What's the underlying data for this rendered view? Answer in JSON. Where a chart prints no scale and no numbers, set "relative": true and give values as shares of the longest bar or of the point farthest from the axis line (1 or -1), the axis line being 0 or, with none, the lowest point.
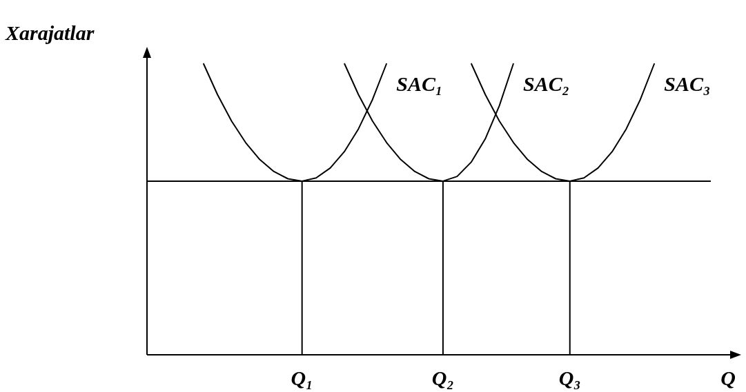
{
  "chart_data": {
    "type": "line",
    "relative": true,
    "xlabel": "Q",
    "ylabel": "Xarajatlar",
    "categories": [
      null,
      null,
      null,
      null,
      null,
      null,
      null,
      null,
      null,
      null,
      null,
      "Q₁",
      null,
      null,
      null,
      null,
      null,
      null,
      null,
      null,
      null,
      "Q₂",
      null,
      null,
      null,
      null,
      null,
      null,
      null,
      null,
      "Q₃",
      null,
      null,
      null,
      null,
      null,
      null,
      null,
      null,
      null,
      null
    ],
    "series": [
      {
        "name": "SAC₁",
        "color": "#000000",
        "values": [
          null,
          null,
          null,
          null,
          1.0,
          0.893,
          0.802,
          0.728,
          0.67,
          0.629,
          0.604,
          0.596,
          0.607,
          0.641,
          0.697,
          0.775,
          0.876,
          1.0,
          null,
          null,
          null,
          null,
          null,
          null,
          null,
          null,
          null,
          null,
          null,
          null,
          null,
          null,
          null,
          null,
          null,
          null,
          null,
          null,
          null,
          null,
          null
        ]
      },
      {
        "name": "SAC₂",
        "color": "#000000",
        "values": [
          null,
          null,
          null,
          null,
          null,
          null,
          null,
          null,
          null,
          null,
          null,
          null,
          null,
          null,
          1.0,
          0.893,
          0.802,
          0.728,
          0.67,
          0.629,
          0.604,
          0.596,
          0.612,
          0.661,
          0.741,
          0.855,
          1.0,
          null,
          null,
          null,
          null,
          null,
          null,
          null,
          null,
          null,
          null,
          null,
          null,
          null,
          null
        ]
      },
      {
        "name": "SAC₃",
        "color": "#000000",
        "values": [
          null,
          null,
          null,
          null,
          null,
          null,
          null,
          null,
          null,
          null,
          null,
          null,
          null,
          null,
          null,
          null,
          null,
          null,
          null,
          null,
          null,
          null,
          null,
          1.0,
          0.893,
          0.802,
          0.728,
          0.67,
          0.629,
          0.604,
          0.596,
          0.607,
          0.641,
          0.697,
          0.775,
          0.876,
          1.0,
          null,
          null,
          null,
          null
        ]
      },
      {
        "color": "#000000",
        "values": [
          0.596,
          0.596,
          0.596,
          0.596,
          0.596,
          0.596,
          0.596,
          0.596,
          0.596,
          0.596,
          0.596,
          0.596,
          0.596,
          0.596,
          0.596,
          0.596,
          0.596,
          0.596,
          0.596,
          0.596,
          0.596,
          0.596,
          0.596,
          0.596,
          0.596,
          0.596,
          0.596,
          0.596,
          0.596,
          0.596,
          0.596,
          0.596,
          0.596,
          0.596,
          0.596,
          0.596,
          0.596,
          0.596,
          0.596,
          0.596,
          0.596
        ]
      }
    ],
    "ref_lines": [
      {
        "axis": "x",
        "value": "Q₁"
      },
      {
        "axis": "x",
        "value": "Q₂"
      },
      {
        "axis": "x",
        "value": "Q₃"
      }
    ]
  }
}
